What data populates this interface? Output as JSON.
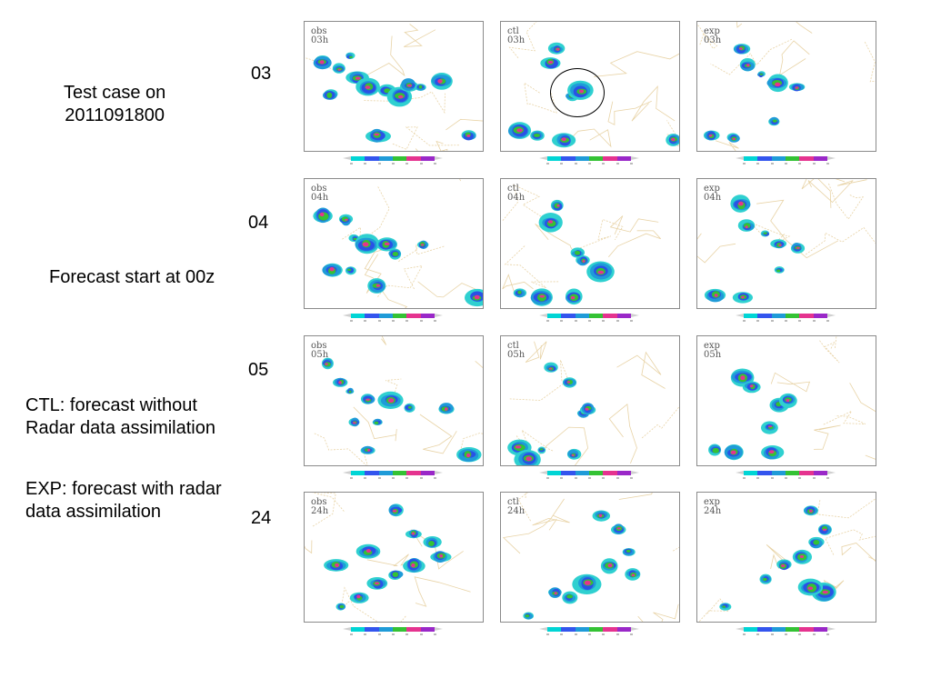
{
  "notes": {
    "test_case": "Test case on\n2011091800",
    "forecast_start": "Forecast start at 00z",
    "ctl_desc": "CTL: forecast without\nRadar data assimilation",
    "exp_desc": "EXP: forecast with radar\ndata assimilation"
  },
  "rows": [
    {
      "hour": "03",
      "sub": "03h"
    },
    {
      "hour": "04",
      "sub": "04h"
    },
    {
      "hour": "05",
      "sub": "05h"
    },
    {
      "hour": "24",
      "sub": "24h"
    }
  ],
  "columns": [
    "obs",
    "ctl",
    "exp"
  ],
  "colorbar": [
    "#00d5d5",
    "#3355ee",
    "#1f9bd8",
    "#34c234",
    "#e5338f",
    "#9a28c8"
  ]
}
